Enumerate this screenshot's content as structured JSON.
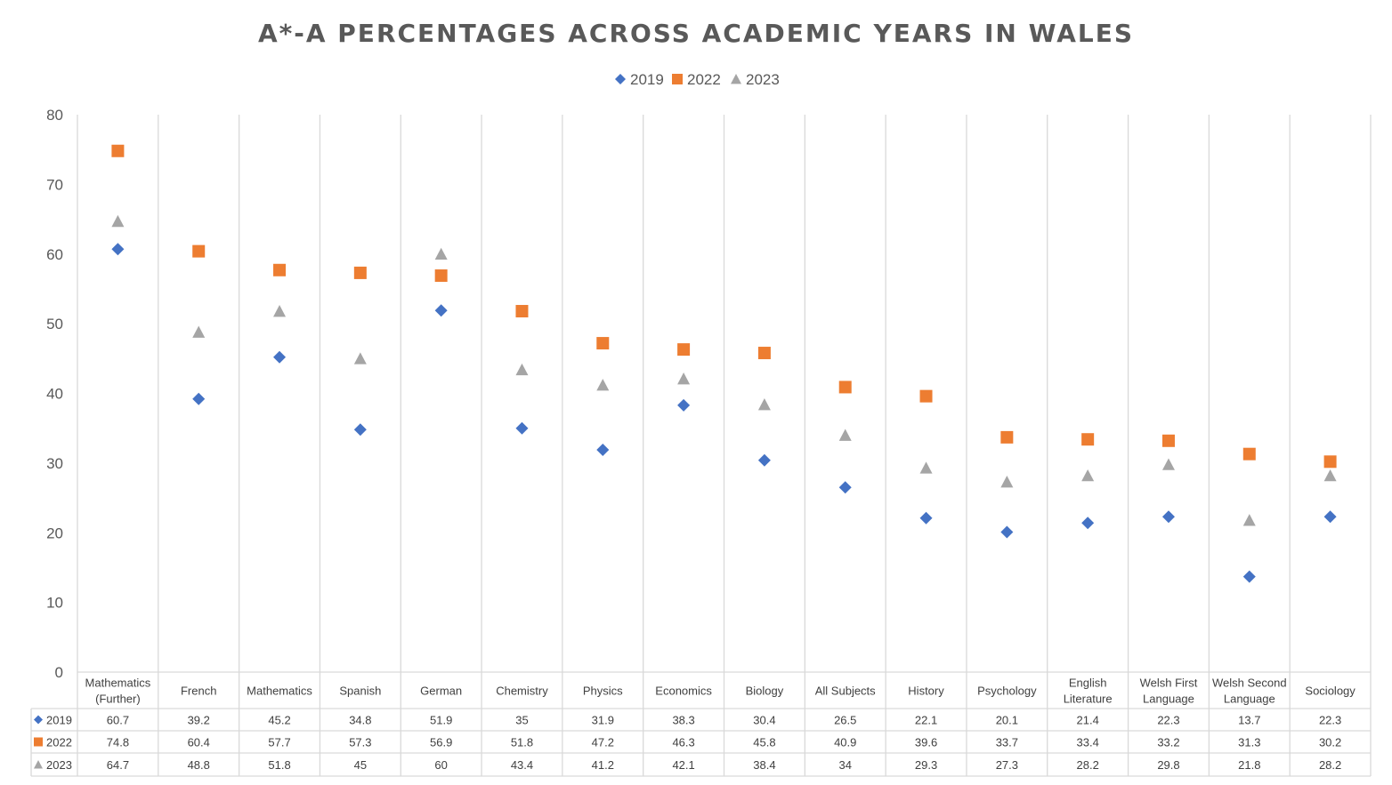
{
  "chart_data": {
    "type": "scatter",
    "title": "A*-A PERCENTAGES ACROSS ACADEMIC YEARS IN WALES",
    "xlabel": "",
    "ylabel": "",
    "ylim": [
      0,
      80
    ],
    "yticks": [
      0,
      10,
      20,
      30,
      40,
      50,
      60,
      70,
      80
    ],
    "grid": "vertical",
    "legend_position": "top",
    "data_table": true,
    "categories": [
      [
        "Mathematics",
        "(Further)"
      ],
      [
        "French"
      ],
      [
        "Mathematics"
      ],
      [
        "Spanish"
      ],
      [
        "German"
      ],
      [
        "Chemistry"
      ],
      [
        "Physics"
      ],
      [
        "Economics"
      ],
      [
        "Biology"
      ],
      [
        "All Subjects"
      ],
      [
        "History"
      ],
      [
        "Psychology"
      ],
      [
        "English",
        "Literature"
      ],
      [
        "Welsh First",
        "Language"
      ],
      [
        "Welsh Second",
        "Language"
      ],
      [
        "Sociology"
      ]
    ],
    "series": [
      {
        "name": "2019",
        "marker": "diamond",
        "color": "#4472C4",
        "values": [
          60.7,
          39.2,
          45.2,
          34.8,
          51.9,
          35,
          31.9,
          38.3,
          30.4,
          26.5,
          22.1,
          20.1,
          21.4,
          22.3,
          13.7,
          22.3
        ]
      },
      {
        "name": "2022",
        "marker": "square",
        "color": "#ED7D31",
        "values": [
          74.8,
          60.4,
          57.7,
          57.3,
          56.9,
          51.8,
          47.2,
          46.3,
          45.8,
          40.9,
          39.6,
          33.7,
          33.4,
          33.2,
          31.3,
          30.2
        ]
      },
      {
        "name": "2023",
        "marker": "triangle",
        "color": "#A5A5A5",
        "values": [
          64.7,
          48.8,
          51.8,
          45,
          60,
          43.4,
          41.2,
          42.1,
          38.4,
          34,
          29.3,
          27.3,
          28.2,
          29.8,
          21.8,
          28.2
        ]
      }
    ]
  }
}
